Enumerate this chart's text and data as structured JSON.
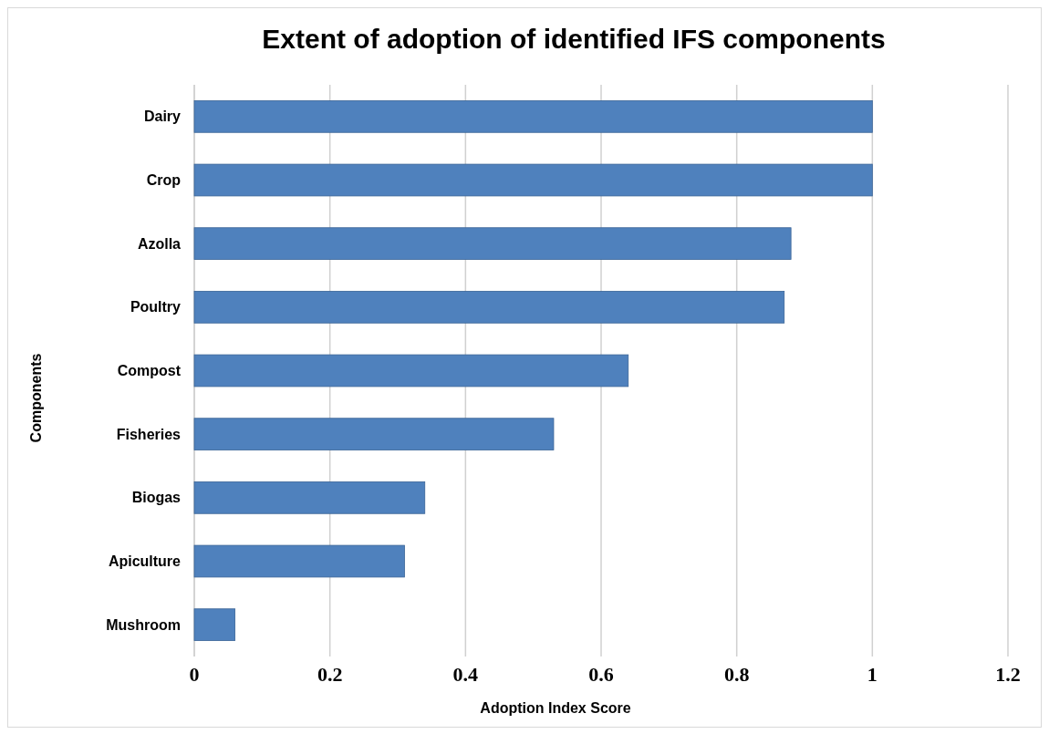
{
  "chart_data": {
    "type": "bar",
    "orientation": "horizontal",
    "title": "Extent of adoption of identified IFS components",
    "xlabel": "Adoption Index Score",
    "ylabel": "Components",
    "categories": [
      "Dairy",
      "Crop",
      "Azolla",
      "Poultry",
      "Compost",
      "Fisheries",
      "Biogas",
      "Apiculture",
      "Mushroom"
    ],
    "values": [
      1,
      1,
      0.88,
      0.87,
      0.64,
      0.53,
      0.34,
      0.31,
      0.06
    ],
    "color": "#4f81bd",
    "xlim": [
      0,
      1.2
    ],
    "xticks": [
      0,
      0.2,
      0.4,
      0.6,
      0.8,
      1,
      1.2
    ],
    "grid": "x"
  }
}
